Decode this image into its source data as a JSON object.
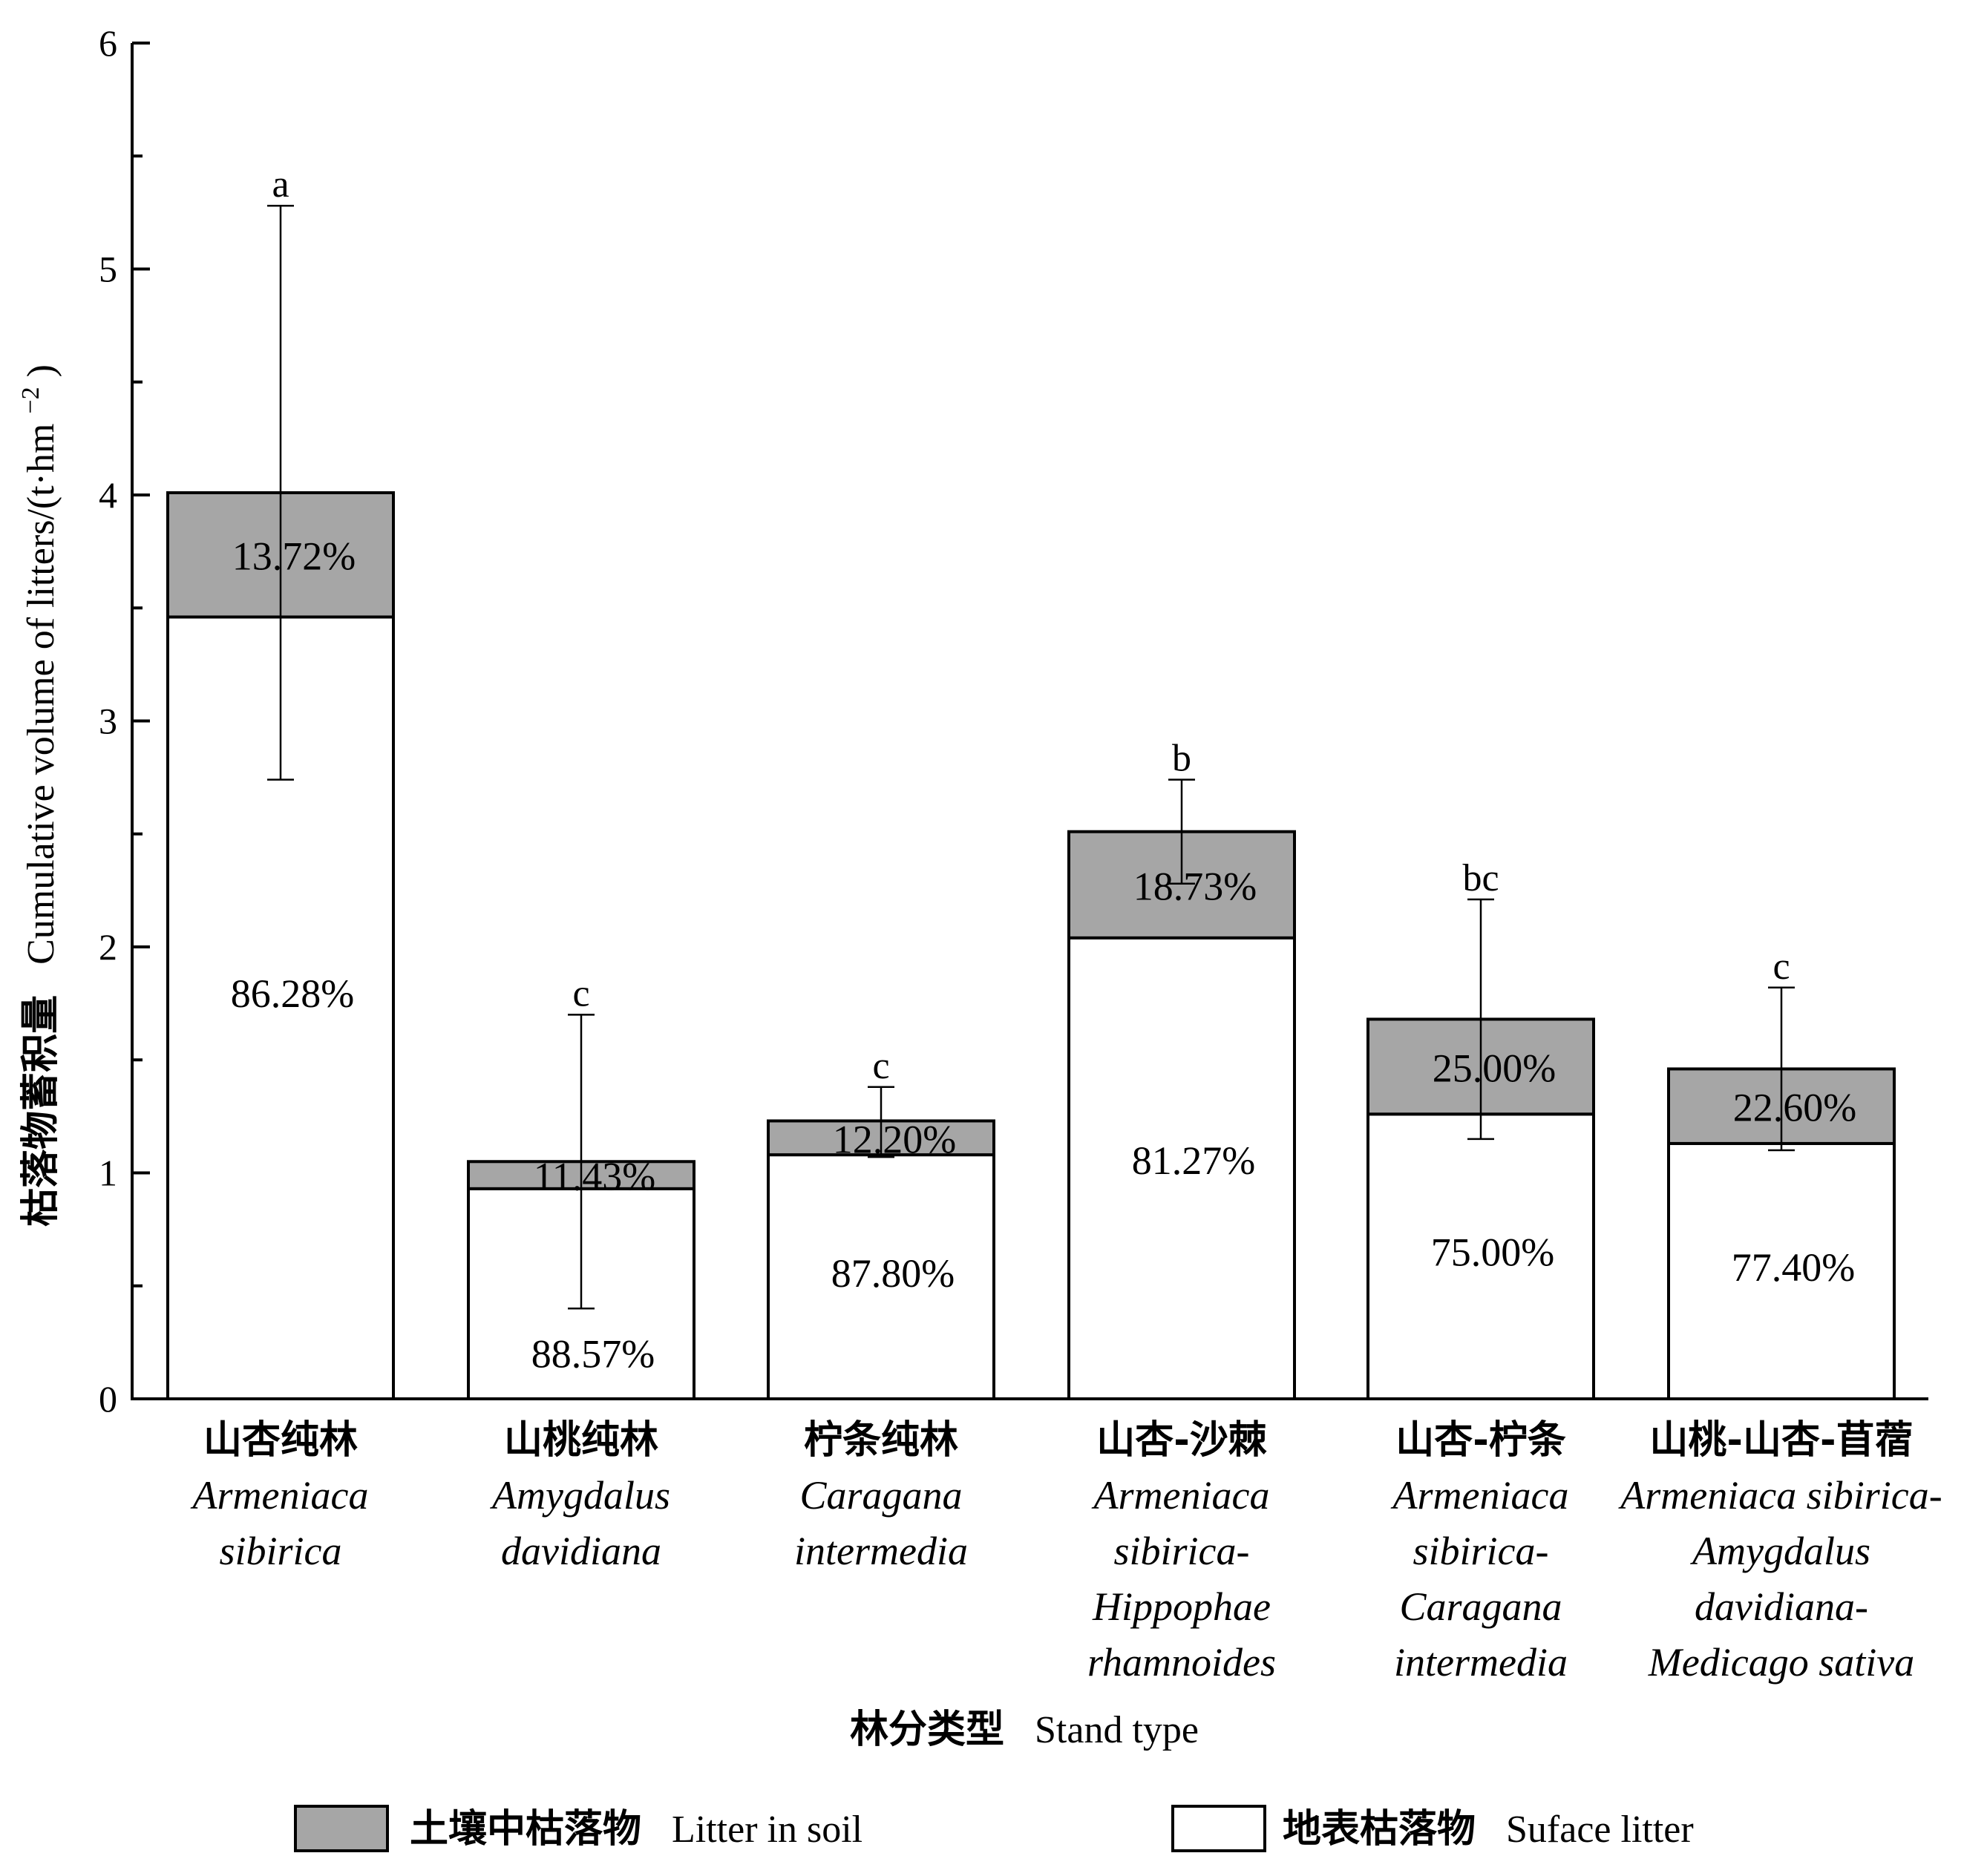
{
  "chart_data": {
    "type": "bar",
    "stacked": true,
    "ylabel": {
      "zh": "枯落物蓄积量",
      "en": "Cumulative volume of litters/(t·hm",
      "sup": "−2",
      "close": ")"
    },
    "xlabel": {
      "zh": "林分类型",
      "en": "Stand type"
    },
    "ylim": [
      0,
      6
    ],
    "yticks": [
      "0",
      "1",
      "2",
      "3",
      "4",
      "5",
      "6"
    ],
    "categories": [
      {
        "zh": "山杏纯林",
        "latin": [
          "Armeniaca",
          "sibirica"
        ]
      },
      {
        "zh": "山桃纯林",
        "latin": [
          "Amygdalus",
          "davidiana"
        ]
      },
      {
        "zh": "柠条纯林",
        "latin": [
          "Caragana",
          "intermedia"
        ]
      },
      {
        "zh": "山杏-沙棘",
        "latin": [
          "Armeniaca",
          "sibirica-",
          "Hippophae",
          "rhamnoides"
        ]
      },
      {
        "zh": "山杏-柠条",
        "latin": [
          "Armeniaca",
          "sibirica-",
          "Caragana",
          "intermedia"
        ]
      },
      {
        "zh": "山桃-山杏-苜蓿",
        "latin": [
          "Armeniaca sibirica-",
          "Amygdalus",
          "davidiana-",
          "Medicago sativa"
        ]
      }
    ],
    "series": [
      {
        "name": "Suface litter",
        "name_zh": "地表枯落物",
        "color": "#ffffff",
        "values": [
          3.46,
          0.93,
          1.08,
          2.04,
          1.26,
          1.13
        ],
        "labels": [
          "86.28%",
          "88.57%",
          "87.80%",
          "81.27%",
          "75.00%",
          "77.40%"
        ]
      },
      {
        "name": "Litter in soil",
        "name_zh": "土壤中枯落物",
        "color": "#a6a6a6",
        "values": [
          0.55,
          0.12,
          0.15,
          0.47,
          0.42,
          0.33
        ],
        "labels": [
          "13.72%",
          "11.43%",
          "12.20%",
          "18.73%",
          "25.00%",
          "22.60%"
        ]
      }
    ],
    "totals": [
      4.01,
      1.05,
      1.23,
      2.51,
      1.68,
      1.46
    ],
    "error_bars": [
      {
        "low": 2.74,
        "high": 5.28
      },
      {
        "low": 0.4,
        "high": 1.7
      },
      {
        "low": 1.07,
        "high": 1.38
      },
      {
        "low": 2.28,
        "high": 2.74
      },
      {
        "low": 1.15,
        "high": 2.21
      },
      {
        "low": 1.1,
        "high": 1.82
      }
    ],
    "significance": [
      "a",
      "c",
      "c",
      "b",
      "bc",
      "c"
    ],
    "legend": {
      "placement": "bottom",
      "items": [
        {
          "zh": "土壤中枯落物",
          "en": "Litter in soil",
          "color": "#a6a6a6"
        },
        {
          "zh": "地表枯落物",
          "en": "Suface litter",
          "color": "#ffffff"
        }
      ]
    }
  }
}
